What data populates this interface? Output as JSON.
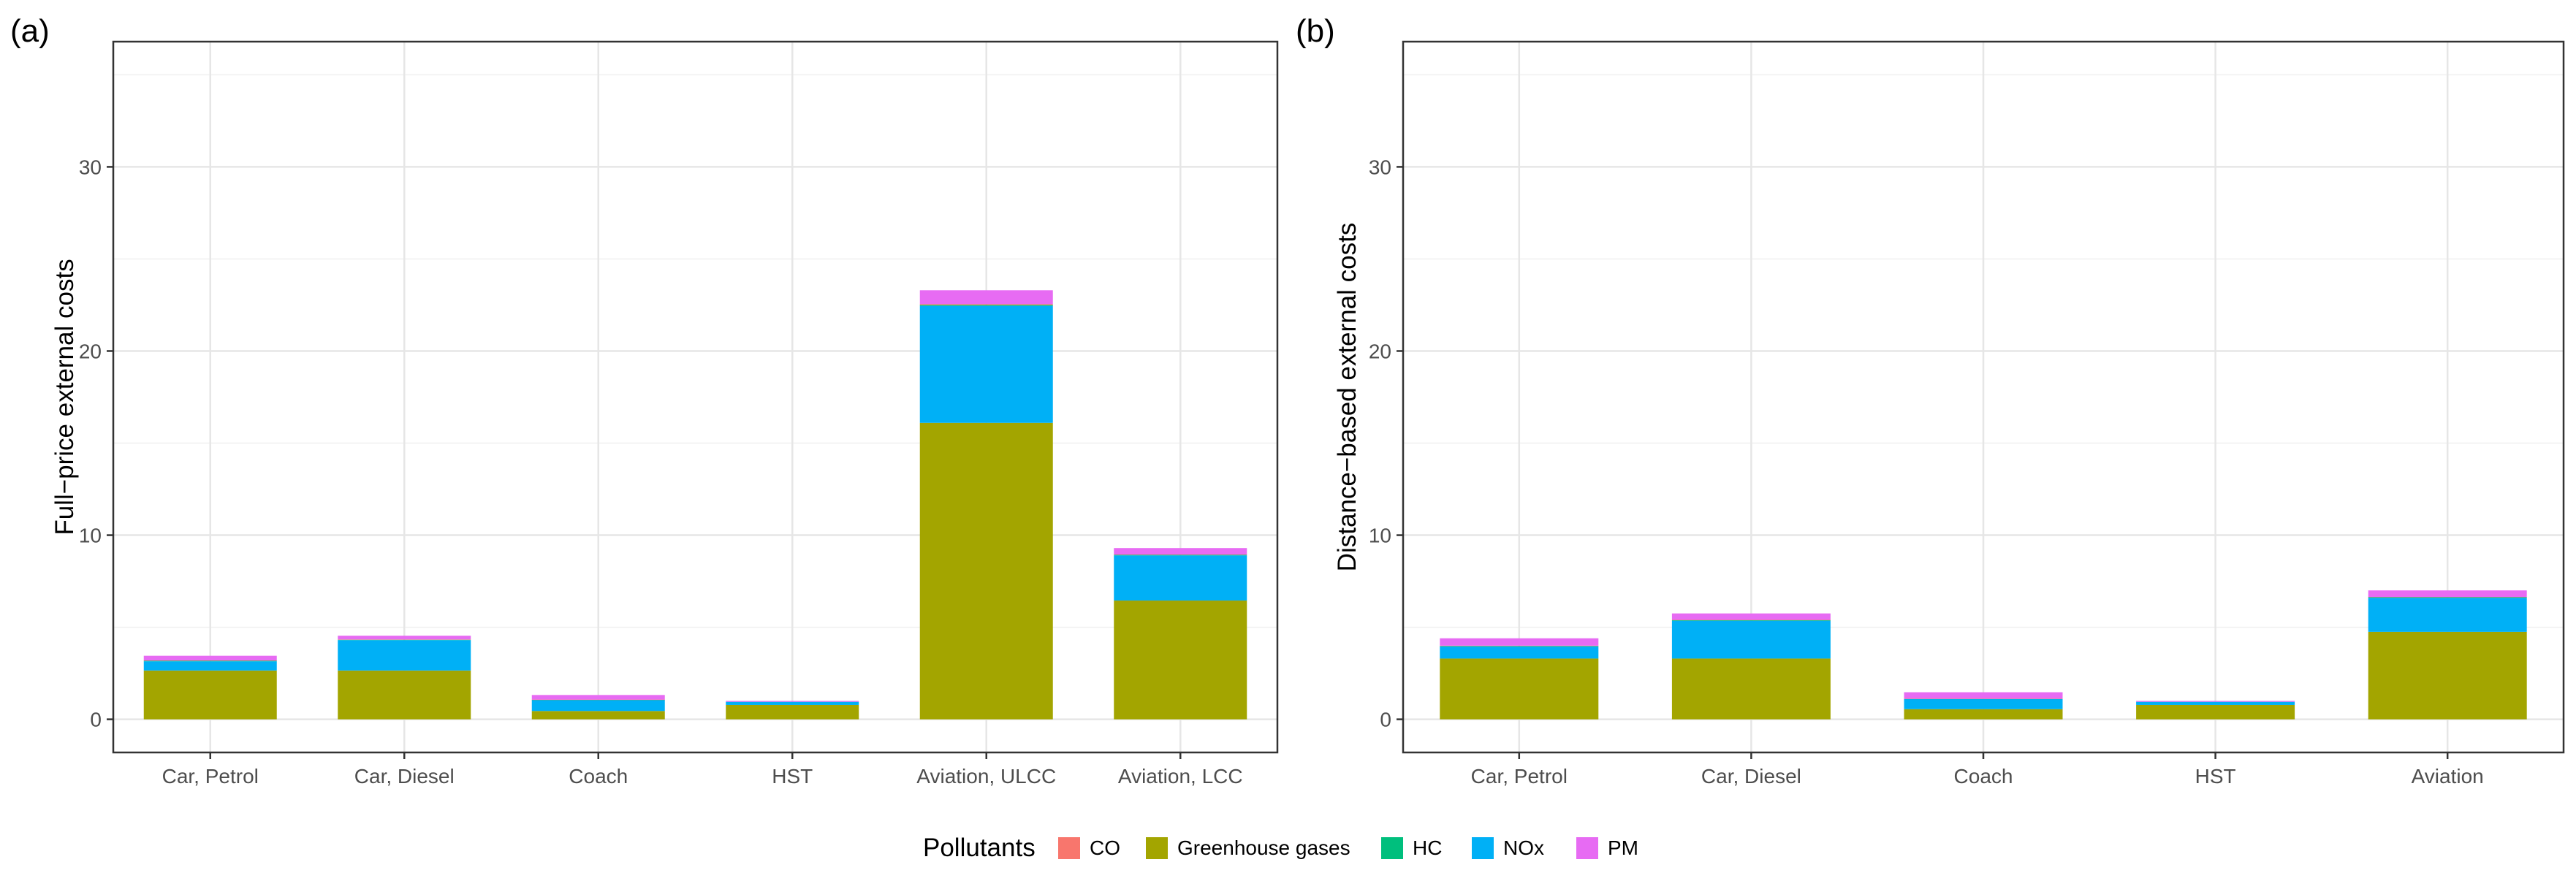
{
  "legend": {
    "title": "Pollutants",
    "position": "bottom",
    "entries": [
      {
        "label": "CO",
        "color": "#F8766D"
      },
      {
        "label": "Greenhouse gases",
        "color": "#A3A500"
      },
      {
        "label": "HC",
        "color": "#00BF7D"
      },
      {
        "label": "NOx",
        "color": "#00B0F6"
      },
      {
        "label": "PM",
        "color": "#E76BF3"
      }
    ]
  },
  "chart_data": [
    {
      "type": "bar",
      "stacked": true,
      "panel_label": "(a)",
      "title": "",
      "xlabel": "",
      "ylabel": "Full−price external costs",
      "ylim": [
        -1.8,
        36.8
      ],
      "yticks": [
        0,
        10,
        20,
        30
      ],
      "grid": true,
      "categories": [
        "Car, Petrol",
        "Car, Diesel",
        "Coach",
        "HST",
        "Aviation, ULCC",
        "Aviation, LCC"
      ],
      "series": [
        {
          "name": "CO",
          "values": [
            0.02,
            0.02,
            0.01,
            0.0,
            0.05,
            0.02
          ]
        },
        {
          "name": "Greenhouse gases",
          "values": [
            2.65,
            2.65,
            0.45,
            0.78,
            16.1,
            6.45
          ]
        },
        {
          "name": "HC",
          "values": [
            0.03,
            0.02,
            0.01,
            0.0,
            0.05,
            0.03
          ]
        },
        {
          "name": "NOx",
          "values": [
            0.5,
            1.65,
            0.6,
            0.17,
            6.35,
            2.45
          ]
        },
        {
          "name": "PM",
          "values": [
            0.25,
            0.2,
            0.25,
            0.05,
            0.75,
            0.35
          ]
        }
      ]
    },
    {
      "type": "bar",
      "stacked": true,
      "panel_label": "(b)",
      "title": "",
      "xlabel": "",
      "ylabel": "Distance−based external costs",
      "ylim": [
        -1.8,
        36.8
      ],
      "yticks": [
        0,
        10,
        20,
        30
      ],
      "grid": true,
      "categories": [
        "Car, Petrol",
        "Car, Diesel",
        "Coach",
        "HST",
        "Aviation"
      ],
      "series": [
        {
          "name": "CO",
          "values": [
            0.02,
            0.02,
            0.01,
            0.0,
            0.02
          ]
        },
        {
          "name": "Greenhouse gases",
          "values": [
            3.3,
            3.3,
            0.55,
            0.78,
            4.75
          ]
        },
        {
          "name": "HC",
          "values": [
            0.03,
            0.03,
            0.01,
            0.0,
            0.03
          ]
        },
        {
          "name": "NOx",
          "values": [
            0.65,
            2.05,
            0.55,
            0.17,
            1.85
          ]
        },
        {
          "name": "PM",
          "values": [
            0.4,
            0.35,
            0.35,
            0.05,
            0.35
          ]
        }
      ]
    }
  ]
}
